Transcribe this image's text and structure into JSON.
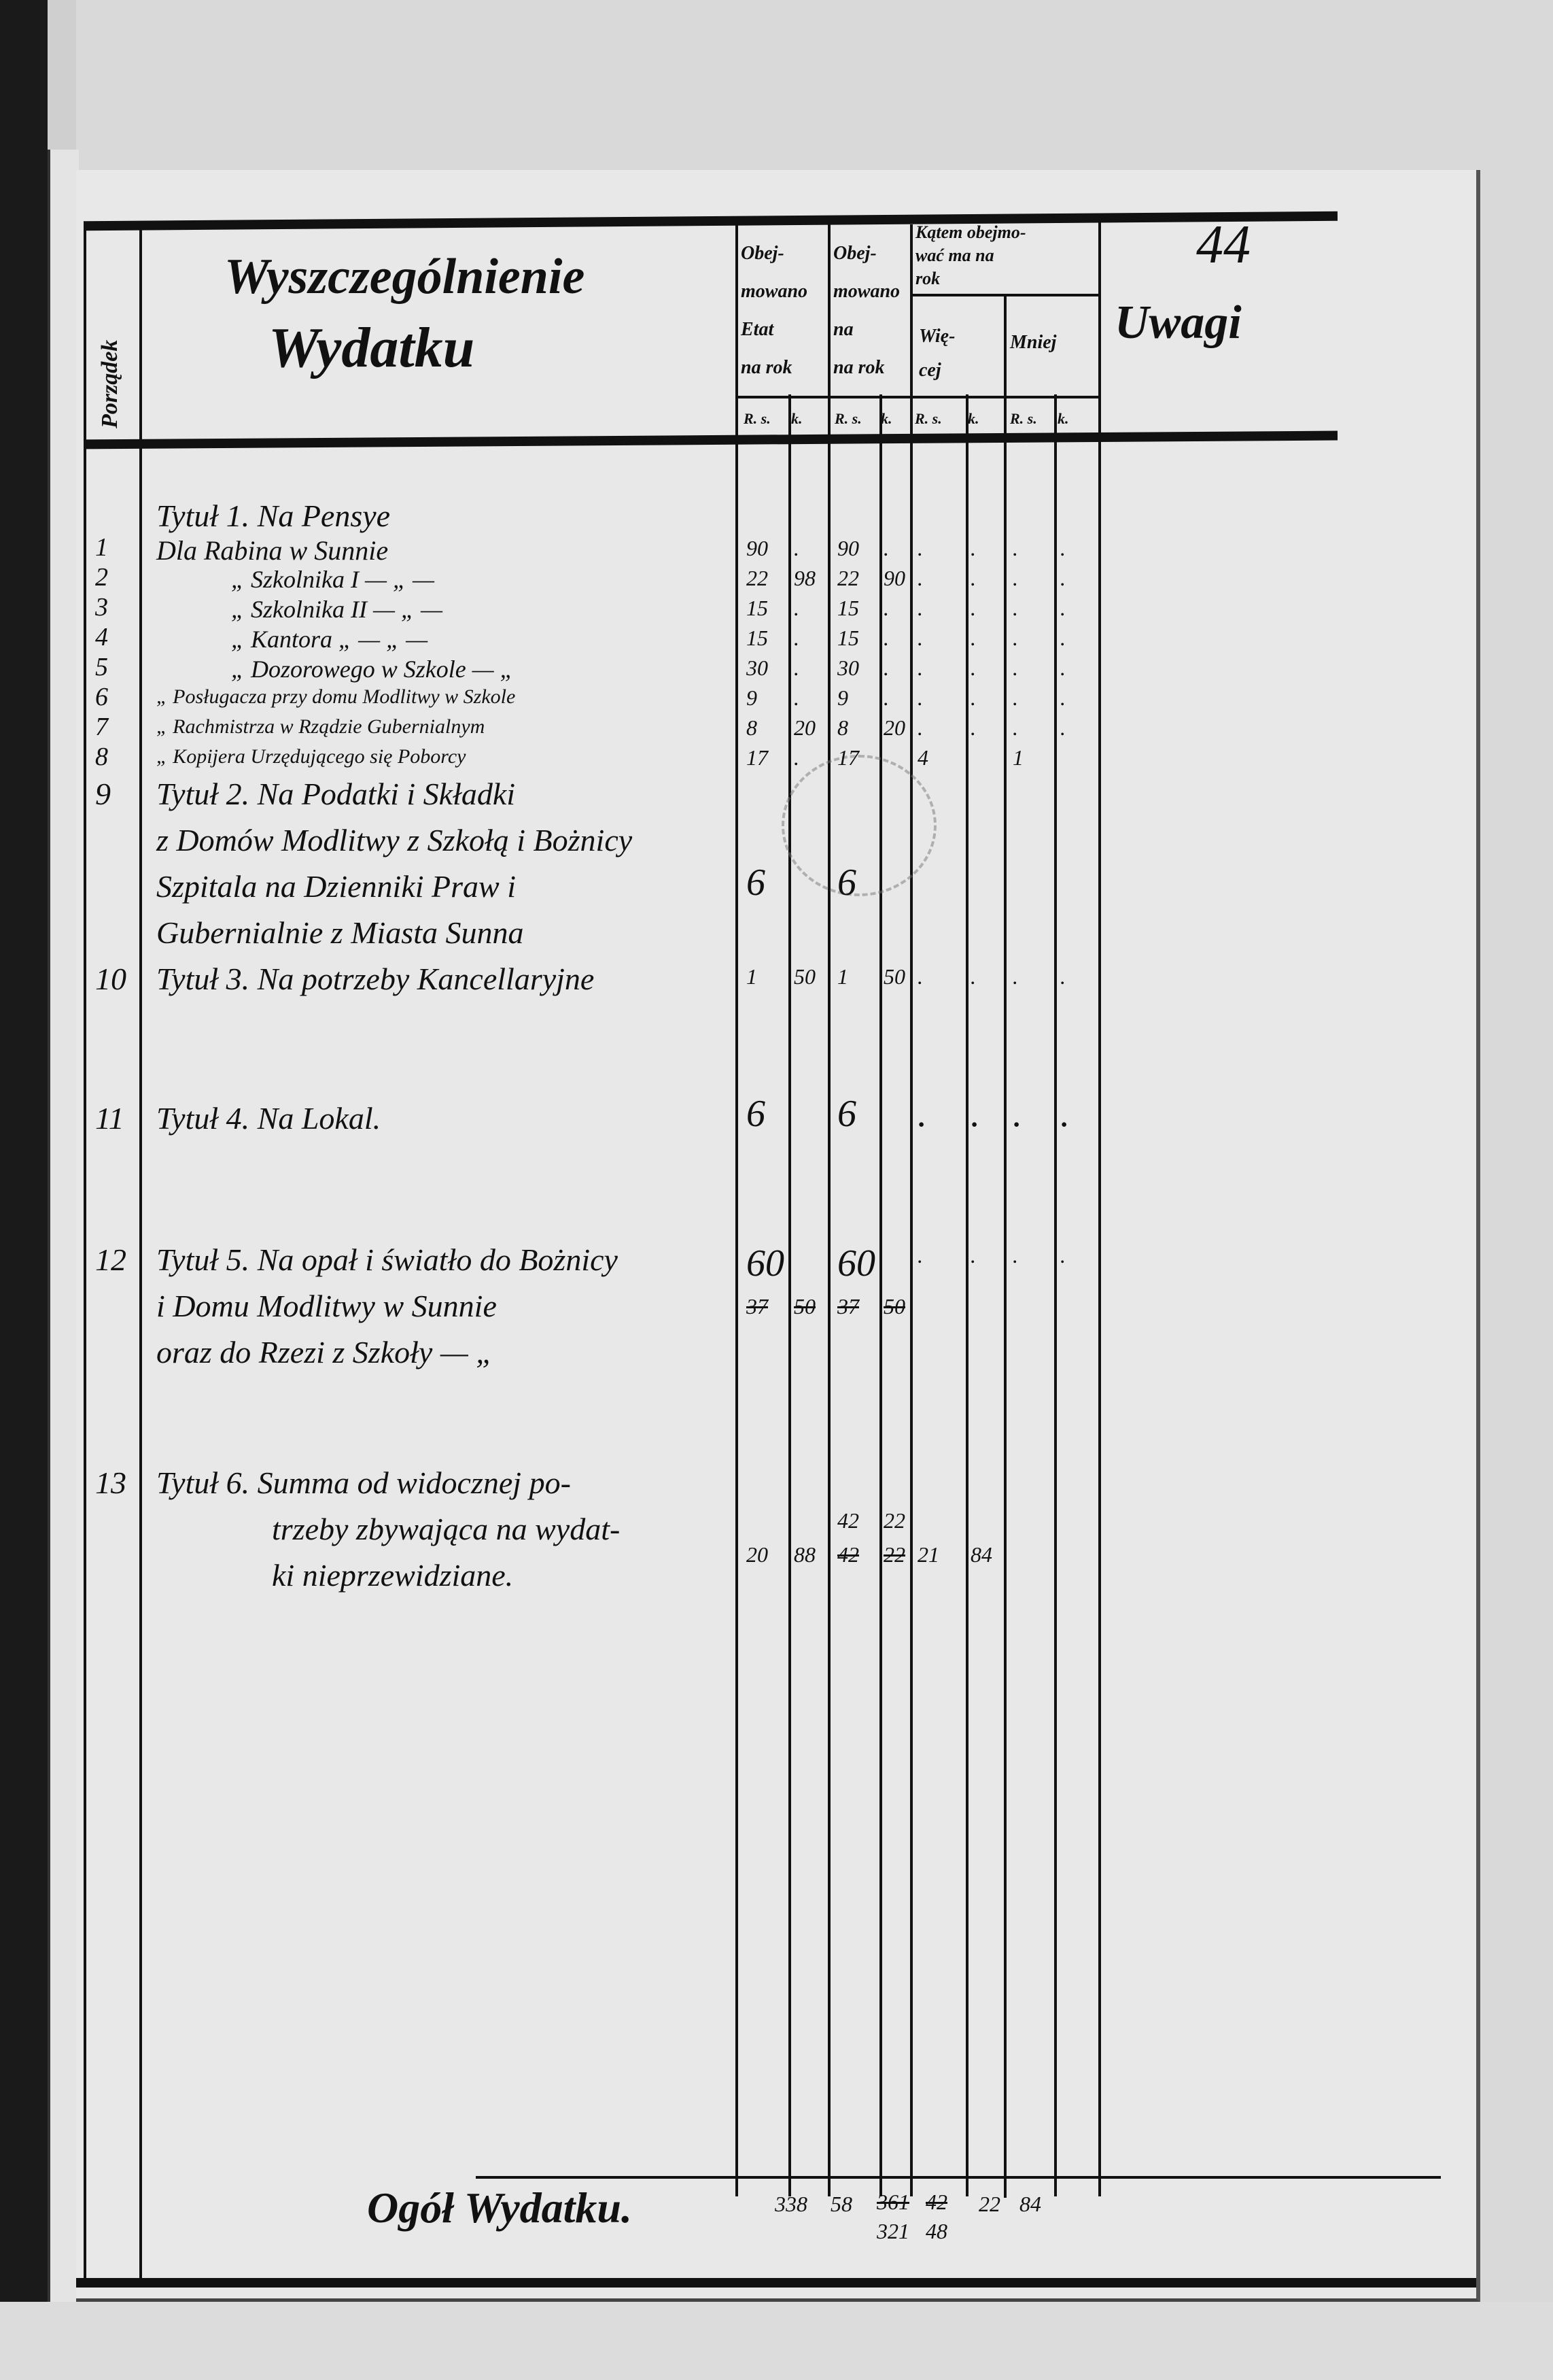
{
  "page_number": "44",
  "header": {
    "order_col": "Porządek",
    "description_title_1": "Wyszczególnienie",
    "description_title_2": "Wydatku",
    "col_etat": [
      "Obej-",
      "mowano",
      "Etat",
      "na rok"
    ],
    "col_proposed": [
      "Obej-",
      "mowano",
      "na",
      "na rok"
    ],
    "col_diff_title": [
      "Kątem obejmo-",
      "wać ma na",
      "rok"
    ],
    "col_more": [
      "Wię-",
      "cej"
    ],
    "col_less": "Mniej",
    "remarks": "Uwagi",
    "sub_rs": "R. s.",
    "sub_k": "k."
  },
  "rows": [
    {
      "no": "",
      "lines": [
        "Tytuł 1. Na Pensye"
      ],
      "v": [
        "",
        "",
        "",
        "",
        "",
        "",
        "",
        ""
      ]
    },
    {
      "no": "1",
      "lines": [
        "Dla Rabina w Sunnie"
      ],
      "v": [
        "90",
        ".",
        "90",
        ".",
        ".",
        ".",
        ".",
        "."
      ]
    },
    {
      "no": "2",
      "lines": [
        "„ Szkolnika I — „ —"
      ],
      "v": [
        "22",
        "98",
        "22",
        "90",
        ".",
        ".",
        ".",
        "."
      ]
    },
    {
      "no": "3",
      "lines": [
        "„ Szkolnika II — „ —"
      ],
      "v": [
        "15",
        ".",
        "15",
        ".",
        ".",
        ".",
        ".",
        "."
      ]
    },
    {
      "no": "4",
      "lines": [
        "„ Kantora „ — „ —"
      ],
      "v": [
        "15",
        ".",
        "15",
        ".",
        ".",
        ".",
        ".",
        "."
      ]
    },
    {
      "no": "5",
      "lines": [
        "„ Dozorowego w Szkole — „"
      ],
      "v": [
        "30",
        ".",
        "30",
        ".",
        ".",
        ".",
        ".",
        "."
      ]
    },
    {
      "no": "6",
      "lines": [
        "„ Posługacza przy domu Modlitwy w Szkole"
      ],
      "v": [
        "9",
        ".",
        "9",
        ".",
        ".",
        ".",
        ".",
        "."
      ]
    },
    {
      "no": "7",
      "lines": [
        "„ Rachmistrza w Rządzie Gubernialnym"
      ],
      "v": [
        "8",
        "20",
        "8",
        "20",
        ".",
        ".",
        ".",
        "."
      ]
    },
    {
      "no": "8",
      "lines": [
        "„ Kopijera Urzędującego się Poborcy"
      ],
      "v": [
        "17",
        ".",
        "17",
        "",
        "4",
        "",
        "1",
        ""
      ]
    },
    {
      "no": "9",
      "lines": [
        "Tytuł 2. Na Podatki i Składki",
        "z Domów Modlitwy z Szkołą i Bożnicy",
        "Szpitala na Dzienniki Praw i",
        "Gubernialnie z Miasta Sunna"
      ],
      "v": [
        "6",
        "",
        "6",
        "",
        "",
        "",
        "",
        ""
      ]
    },
    {
      "no": "10",
      "lines": [
        "Tytuł 3. Na potrzeby Kancellaryjne"
      ],
      "v": [
        "1",
        "50",
        "1",
        "50",
        ".",
        ".",
        ".",
        "."
      ]
    },
    {
      "no": "11",
      "lines": [
        "Tytuł 4. Na Lokal."
      ],
      "v": [
        "6",
        "",
        "6",
        "",
        ".",
        ".",
        ".",
        "."
      ]
    },
    {
      "no": "12",
      "lines": [
        "Tytuł 5. Na opał i światło do Bożnicy",
        "i Domu Modlitwy w Sunnie",
        "oraz do Rzezi z Szkoły — „"
      ],
      "v": [
        "60",
        "",
        "60",
        "",
        ".",
        ".",
        ".",
        "."
      ],
      "struck": [
        "37",
        "50",
        "37",
        "50"
      ]
    },
    {
      "no": "13",
      "lines": [
        "Tytuł 6. Summa od widocznej po-",
        "trzeby zbywająca na wydat-",
        "ki nieprzewidziane."
      ],
      "v": [
        "20",
        "88",
        "42",
        "22",
        "21",
        "84",
        "",
        ""
      ],
      "struck": [
        "42",
        "22"
      ]
    }
  ],
  "total": {
    "label": "Ogół Wydatku.",
    "v": [
      "338",
      "58",
      "321",
      "48",
      "22",
      "84"
    ],
    "struck": [
      "361",
      "42"
    ]
  }
}
